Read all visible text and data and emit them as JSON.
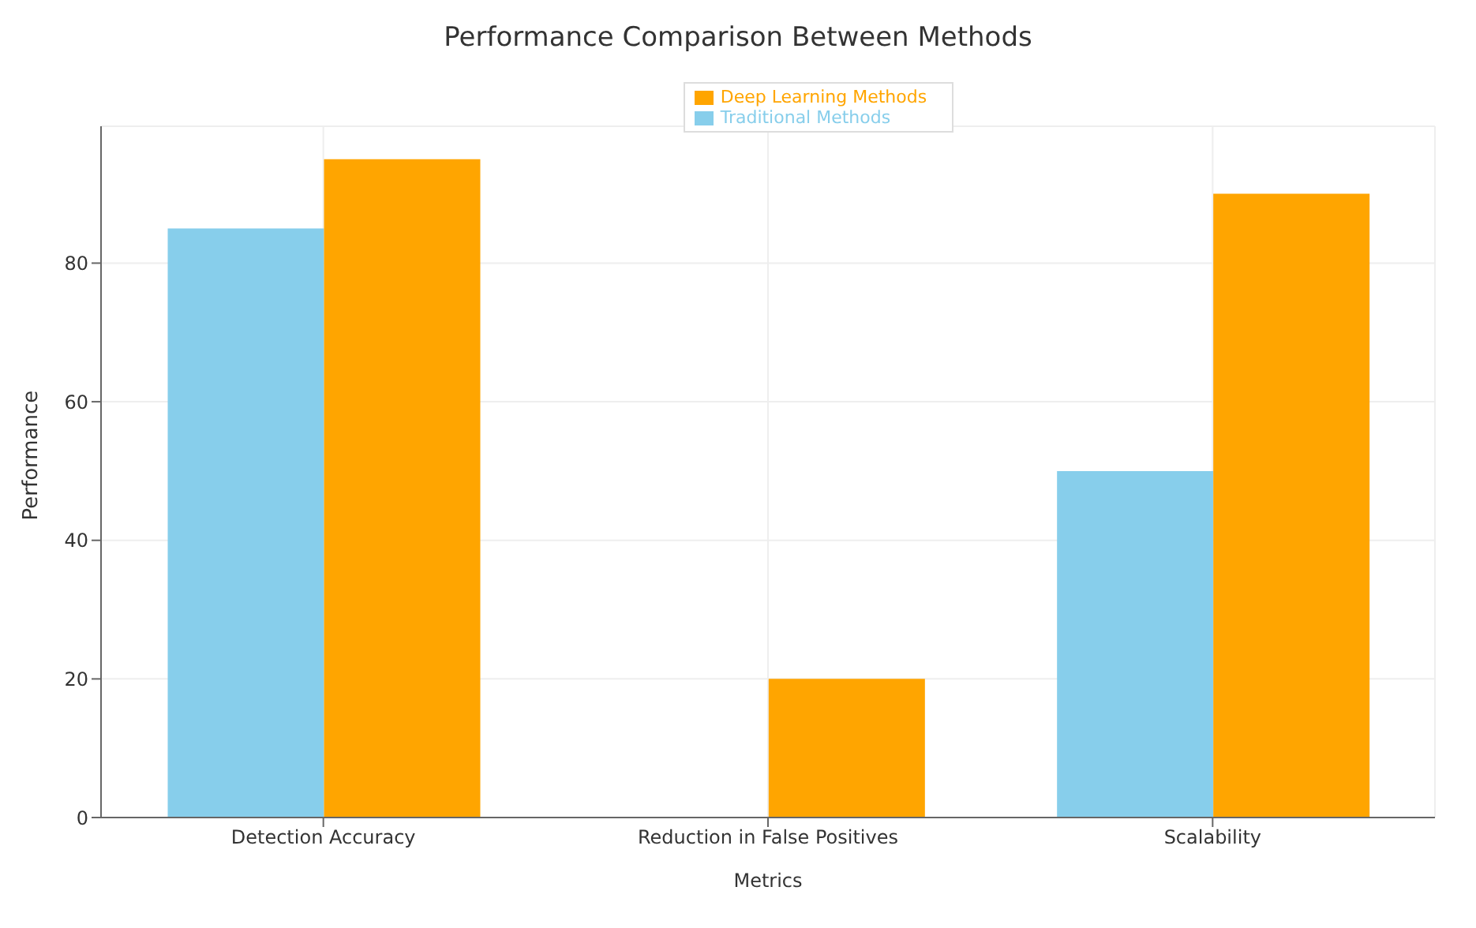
{
  "chart_data": {
    "type": "bar",
    "title": "Performance Comparison Between Methods",
    "xlabel": "Metrics",
    "ylabel": "Performance",
    "categories": [
      "Detection Accuracy",
      "Reduction in False Positives",
      "Scalability"
    ],
    "series": [
      {
        "name": "Traditional Methods",
        "color": "#87ceeb",
        "values": [
          85,
          0,
          50
        ]
      },
      {
        "name": "Deep Learning Methods",
        "color": "#ffa500",
        "values": [
          95,
          20,
          90
        ]
      }
    ],
    "ylim": [
      0,
      99.75
    ],
    "yticks": [
      0,
      20,
      40,
      60,
      80
    ],
    "grid": true,
    "legend": "top"
  }
}
